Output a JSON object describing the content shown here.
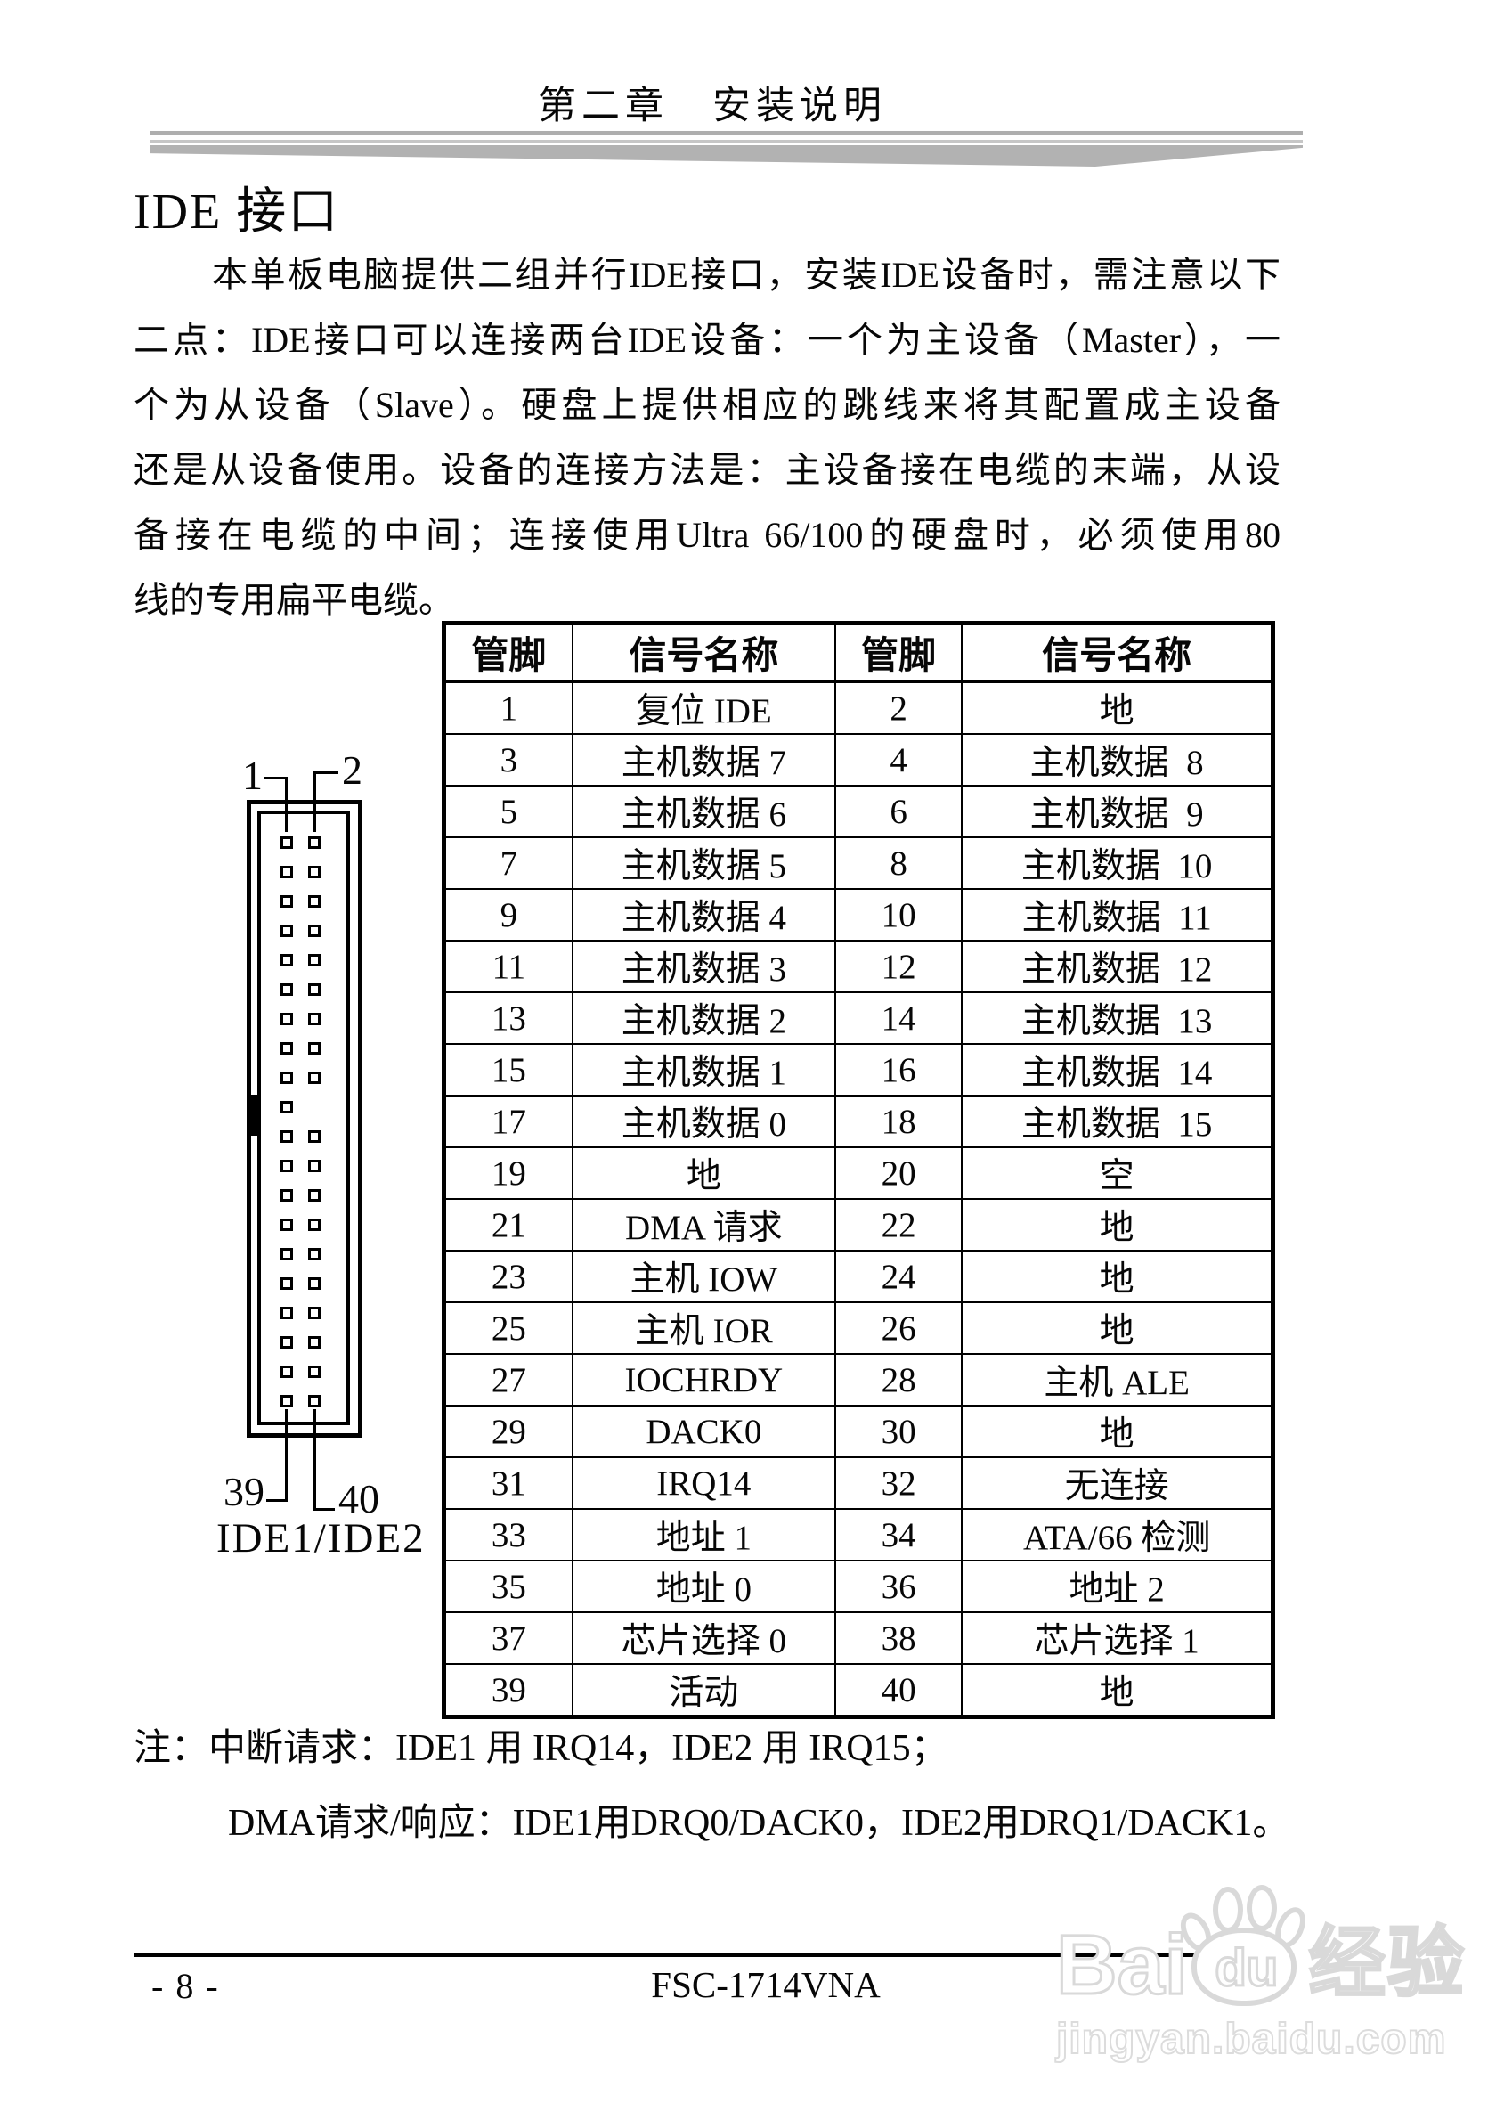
{
  "header": {
    "chapter_title": "第二章　安装说明"
  },
  "section": {
    "title": "IDE 接口"
  },
  "paragraph_lines": [
    "本单板电脑提供二组并行IDE接口，安装IDE设备时，需注意以下",
    "二点：IDE接口可以连接两台IDE设备：一个为主设备（Master），一",
    "个为从设备（Slave）。硬盘上提供相应的跳线来将其配置成主设备",
    "还是从设备使用。设备的连接方法是：主设备接在电缆的末端，从设",
    "备接在电缆的中间；连接使用Ultra 66/100的硬盘时，必须使用80",
    "线的专用扁平电缆。"
  ],
  "pin_table": {
    "headers": [
      "管脚",
      "信号名称",
      "管脚",
      "信号名称"
    ],
    "rows": [
      [
        "1",
        "复位 IDE",
        "2",
        "地"
      ],
      [
        "3",
        "主机数据 7",
        "4",
        "主机数据  8"
      ],
      [
        "5",
        "主机数据 6",
        "6",
        "主机数据  9"
      ],
      [
        "7",
        "主机数据 5",
        "8",
        "主机数据  10"
      ],
      [
        "9",
        "主机数据 4",
        "10",
        "主机数据  11"
      ],
      [
        "11",
        "主机数据 3",
        "12",
        "主机数据  12"
      ],
      [
        "13",
        "主机数据 2",
        "14",
        "主机数据  13"
      ],
      [
        "15",
        "主机数据 1",
        "16",
        "主机数据  14"
      ],
      [
        "17",
        "主机数据 0",
        "18",
        "主机数据  15"
      ],
      [
        "19",
        "地",
        "20",
        "空"
      ],
      [
        "21",
        "DMA 请求",
        "22",
        "地"
      ],
      [
        "23",
        "主机 IOW",
        "24",
        "地"
      ],
      [
        "25",
        "主机 IOR",
        "26",
        "地"
      ],
      [
        "27",
        "IOCHRDY",
        "28",
        "主机 ALE"
      ],
      [
        "29",
        "DACK0",
        "30",
        "地"
      ],
      [
        "31",
        "IRQ14",
        "32",
        "无连接"
      ],
      [
        "33",
        "地址 1",
        "34",
        "ATA/66 检测"
      ],
      [
        "35",
        "地址 0",
        "36",
        "地址 2"
      ],
      [
        "37",
        "芯片选择 0",
        "38",
        "芯片选择 1"
      ],
      [
        "39",
        "活动",
        "40",
        "地"
      ]
    ]
  },
  "connector": {
    "labels": {
      "top_left": "1",
      "top_right": "2",
      "bottom_left": "39",
      "bottom_right": "40"
    },
    "caption": "IDE1/IDE2",
    "pin_rows": 20,
    "missing_pin_row": 10
  },
  "notes": [
    "注：中断请求：IDE1 用 IRQ14，IDE2 用 IRQ15；",
    "DMA请求/响应：IDE1用DRQ0/DACK0，IDE2用DRQ1/DACK1。"
  ],
  "footer": {
    "page_number": "- 8 -",
    "doc_code": "FSC-1714VNA"
  },
  "watermark": {
    "brand_prefix": "Bai",
    "brand_suffix": "du",
    "brand_cn": "经验",
    "url": "jingyan.baidu.com"
  }
}
